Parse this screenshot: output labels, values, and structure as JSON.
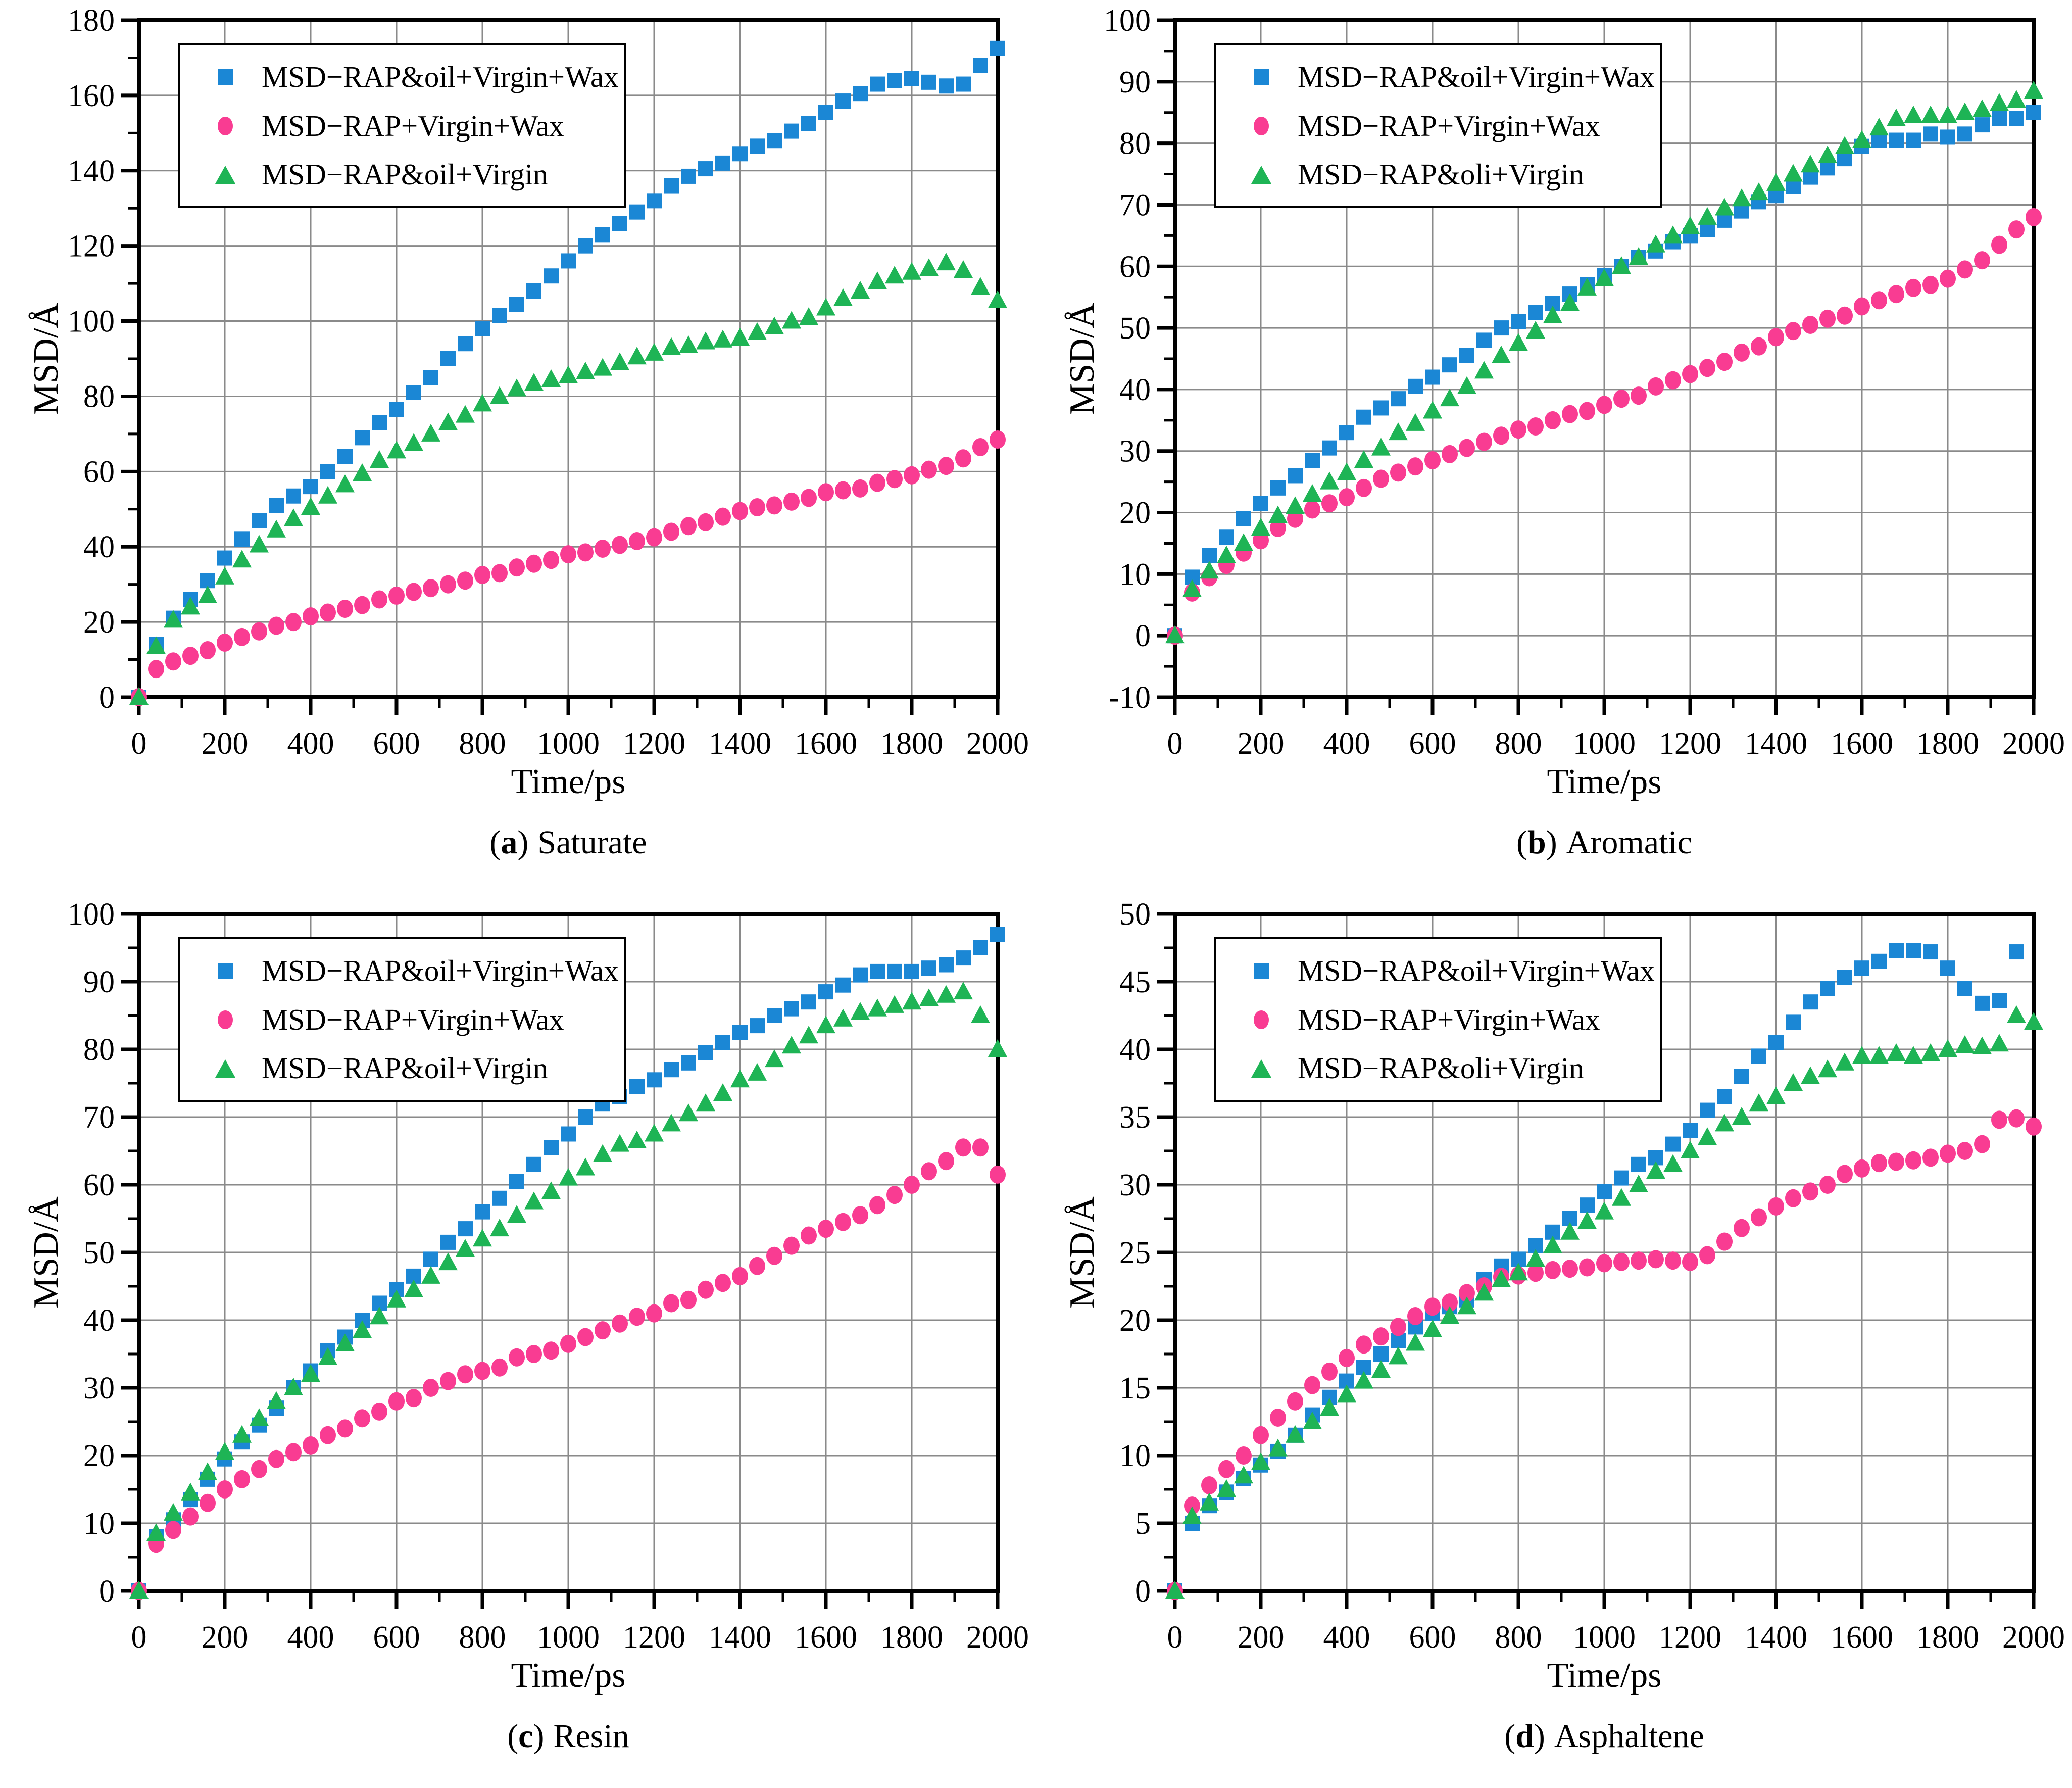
{
  "figure": {
    "xlabel": "Time/ps",
    "ylabel": "MSD/Å"
  },
  "colors": {
    "axis": "#000000",
    "grid": "#8a8a8a",
    "background": "#ffffff",
    "blue": "#1b87d5",
    "pink": "#f93c92",
    "green": "#1eb455"
  },
  "chart_data": [
    {
      "type": "scatter",
      "title": "Saturate",
      "caption": {
        "pre": "(",
        "letter": "a",
        "post": ")",
        "title": "Saturate"
      },
      "xlabel": "Time/ps",
      "ylabel": "MSD/Å",
      "xlim": [
        0,
        2000
      ],
      "ylim": [
        0,
        180
      ],
      "x_major": 200,
      "x_minor": 100,
      "y_major": 20,
      "y_minor": 10,
      "grid": true,
      "legend_position": "top-left",
      "x_start": 0,
      "x_step": 40,
      "series": [
        {
          "name": "MSD−RAP&oil+Virgin+Wax",
          "marker": "square",
          "color": "#1b87d5",
          "values": [
            0,
            14,
            21,
            26,
            31,
            37,
            42,
            47,
            51,
            53.5,
            56,
            60,
            64,
            69,
            73,
            76.5,
            81,
            85,
            90,
            94,
            98,
            101.5,
            104.5,
            108,
            112,
            116,
            120,
            123,
            126,
            129,
            132,
            136,
            138.5,
            140.5,
            142,
            144.5,
            146.5,
            148,
            150.5,
            152.5,
            155.5,
            158.5,
            160.5,
            163,
            164,
            164.5,
            163.5,
            162.5,
            163,
            168,
            172.5
          ]
        },
        {
          "name": "MSD−RAP+Virgin+Wax",
          "marker": "circle",
          "color": "#f93c92",
          "values": [
            0,
            7.5,
            9.5,
            11,
            12.5,
            14.5,
            16,
            17.5,
            19,
            20,
            21.5,
            22.5,
            23.5,
            24.5,
            26,
            27,
            28,
            29,
            30,
            31,
            32.5,
            33,
            34.5,
            35.5,
            36.5,
            38,
            38.5,
            39.5,
            40.5,
            41.5,
            42.5,
            44,
            45.5,
            46.5,
            48,
            49.5,
            50.5,
            51,
            52,
            53,
            54.5,
            55,
            55.5,
            57,
            58,
            59,
            60.5,
            61.5,
            63.5,
            66.5,
            68.5
          ]
        },
        {
          "name": "MSD−RAP&oil+Virgin",
          "marker": "triangle",
          "color": "#1eb455",
          "values": [
            0,
            13.5,
            20.5,
            24,
            27,
            32,
            36.5,
            40.5,
            44.5,
            47.5,
            50.5,
            53.5,
            56.5,
            59.5,
            63,
            65.5,
            67.5,
            70,
            73,
            75,
            78,
            80,
            82,
            83.5,
            84.5,
            85.5,
            86.5,
            87.5,
            89,
            90.5,
            91.5,
            93,
            93.5,
            94.5,
            95,
            95.5,
            97,
            98.5,
            100,
            101,
            103.5,
            106,
            108,
            110.5,
            112,
            113,
            114,
            115.5,
            113.5,
            109,
            105.5
          ]
        }
      ]
    },
    {
      "type": "scatter",
      "title": "Aromatic",
      "caption": {
        "pre": "(",
        "letter": "b",
        "post": ")",
        "title": "Aromatic"
      },
      "xlabel": "Time/ps",
      "ylabel": "MSD/Å",
      "xlim": [
        0,
        2000
      ],
      "ylim": [
        -10,
        100
      ],
      "x_major": 200,
      "x_minor": 100,
      "y_major": 10,
      "y_minor": 5,
      "grid": true,
      "legend_position": "top-left",
      "x_start": 0,
      "x_step": 40,
      "series": [
        {
          "name": "MSD−RAP&oil+Virgin+Wax",
          "marker": "square",
          "color": "#1b87d5",
          "values": [
            0,
            9.5,
            13,
            16,
            19,
            21.5,
            24,
            26,
            28.5,
            30.5,
            33,
            35.5,
            37,
            38.5,
            40.5,
            42,
            44,
            45.5,
            48,
            50,
            51,
            52.5,
            54,
            55.5,
            57,
            58.5,
            60,
            61.5,
            62.5,
            64,
            65,
            66,
            67.5,
            69,
            70.5,
            71.5,
            73,
            74.5,
            76,
            77.5,
            79.5,
            80.5,
            80.5,
            80.5,
            81.5,
            81,
            81.5,
            83,
            84,
            84,
            85
          ]
        },
        {
          "name": "MSD−RAP+Virgin+Wax",
          "marker": "circle",
          "color": "#f93c92",
          "values": [
            0,
            7,
            9.5,
            11.5,
            13.5,
            15.5,
            17.5,
            19,
            20.5,
            21.5,
            22.5,
            24,
            25.5,
            26.5,
            27.5,
            28.5,
            29.5,
            30.5,
            31.5,
            32.5,
            33.5,
            34,
            35,
            36,
            36.5,
            37.5,
            38.5,
            39,
            40.5,
            41.5,
            42.5,
            43.5,
            44.5,
            46,
            47,
            48.5,
            49.5,
            50.5,
            51.5,
            52,
            53.5,
            54.5,
            55.5,
            56.5,
            57,
            58,
            59.5,
            61,
            63.5,
            66,
            68
          ]
        },
        {
          "name": "MSD−RAP&oli+Virgin",
          "marker": "triangle",
          "color": "#1eb455",
          "values": [
            0,
            7.5,
            10.5,
            13,
            15,
            17.5,
            19.5,
            21,
            23,
            25,
            26.5,
            28.5,
            30.5,
            33,
            34.5,
            36.5,
            38.5,
            40.5,
            43,
            45.5,
            47.5,
            49.5,
            52,
            54,
            56.5,
            58,
            60,
            61.5,
            63.5,
            65,
            66.5,
            68,
            69.5,
            71,
            72,
            73.5,
            75,
            76.5,
            78,
            79.5,
            80.5,
            82.5,
            84,
            84.5,
            84.5,
            84.5,
            85,
            85.5,
            86.5,
            87,
            88.5
          ]
        }
      ]
    },
    {
      "type": "scatter",
      "title": "Resin",
      "caption": {
        "pre": "(",
        "letter": "c",
        "post": ")",
        "title": "Resin"
      },
      "xlabel": "Time/ps",
      "ylabel": "MSD/Å",
      "xlim": [
        0,
        2000
      ],
      "ylim": [
        0,
        100
      ],
      "x_major": 200,
      "x_minor": 100,
      "y_major": 10,
      "y_minor": 5,
      "grid": true,
      "legend_position": "top-left",
      "x_start": 0,
      "x_step": 40,
      "series": [
        {
          "name": "MSD−RAP&oil+Virgin+Wax",
          "marker": "square",
          "color": "#1b87d5",
          "values": [
            0,
            8,
            10.5,
            13.5,
            16.5,
            19.5,
            22,
            24.5,
            27,
            30,
            32.5,
            35.5,
            37.5,
            40,
            42.5,
            44.5,
            46.5,
            49,
            51.5,
            53.5,
            56,
            58,
            60.5,
            63,
            65.5,
            67.5,
            70,
            72,
            73,
            74.5,
            75.5,
            77,
            78,
            79.5,
            81,
            82.5,
            83.5,
            85,
            86,
            87,
            88.5,
            89.5,
            91,
            91.5,
            91.5,
            91.5,
            92,
            92.5,
            93.5,
            95,
            97
          ]
        },
        {
          "name": "MSD−RAP+Virgin+Wax",
          "marker": "circle",
          "color": "#f93c92",
          "values": [
            0,
            7,
            9,
            11,
            13,
            15,
            16.5,
            18,
            19.5,
            20.5,
            21.5,
            23,
            24,
            25.5,
            26.5,
            28,
            28.5,
            30,
            31,
            32,
            32.5,
            33,
            34.5,
            35,
            35.5,
            36.5,
            37.5,
            38.5,
            39.5,
            40.5,
            41,
            42.5,
            43,
            44.5,
            45.5,
            46.5,
            48,
            49.5,
            51,
            52.5,
            53.5,
            54.5,
            55.5,
            57,
            58.5,
            60,
            62,
            63.5,
            65.5,
            65.5,
            61.5
          ]
        },
        {
          "name": "MSD−RAP&oil+Virgin",
          "marker": "triangle",
          "color": "#1eb455",
          "values": [
            0,
            8.5,
            11.5,
            14.5,
            17.5,
            20.5,
            23,
            25.5,
            28,
            30,
            32,
            34.5,
            36.5,
            38.5,
            40.5,
            43,
            44.5,
            46.5,
            48.5,
            50.5,
            52,
            53.5,
            55.5,
            57.5,
            59,
            61,
            62.5,
            64.5,
            66,
            66.5,
            67.5,
            69,
            70.5,
            72,
            73.5,
            75.5,
            76.5,
            78.5,
            80.5,
            82,
            83.5,
            84.5,
            85.5,
            86,
            86.5,
            87,
            87.5,
            88,
            88.5,
            85,
            80
          ]
        }
      ]
    },
    {
      "type": "scatter",
      "title": "Asphaltene",
      "caption": {
        "pre": "(",
        "letter": "d",
        "post": ")",
        "title": "Asphaltene"
      },
      "xlabel": "Time/ps",
      "ylabel": "MSD/Å",
      "xlim": [
        0,
        2000
      ],
      "ylim": [
        0,
        50
      ],
      "x_major": 200,
      "x_minor": 100,
      "y_major": 5,
      "y_minor": 2.5,
      "grid": true,
      "legend_position": "top-left",
      "x_start": 0,
      "x_step": 40,
      "series": [
        {
          "name": "MSD−RAP&oil+Virgin+Wax",
          "marker": "square",
          "color": "#1b87d5",
          "values": [
            0,
            5,
            6.3,
            7.3,
            8.3,
            9.3,
            10.3,
            11.5,
            13,
            14.3,
            15.5,
            16.5,
            17.5,
            18.5,
            19.5,
            20.5,
            21,
            21.5,
            23,
            24,
            24.5,
            25.5,
            26.5,
            27.5,
            28.5,
            29.5,
            30.5,
            31.5,
            32,
            33,
            34,
            35.5,
            36.5,
            38,
            39.5,
            40.5,
            42,
            43.5,
            44.5,
            45.3,
            46,
            46.5,
            47.3,
            47.3,
            47.2,
            46,
            44.5,
            43.4,
            43.6,
            47.2,
            null
          ]
        },
        {
          "name": "MSD−RAP+Virgin+Wax",
          "marker": "circle",
          "color": "#f93c92",
          "values": [
            0,
            6.3,
            7.8,
            9,
            10,
            11.5,
            12.8,
            14,
            15.2,
            16.2,
            17.2,
            18.2,
            18.8,
            19.5,
            20.3,
            21,
            21.3,
            22,
            22.5,
            23.2,
            23.3,
            23.5,
            23.7,
            23.8,
            23.9,
            24.2,
            24.3,
            24.4,
            24.5,
            24.4,
            24.3,
            24.8,
            25.8,
            26.8,
            27.6,
            28.4,
            29,
            29.5,
            30,
            30.8,
            31.2,
            31.6,
            31.7,
            31.8,
            32,
            32.3,
            32.5,
            33,
            34.8,
            34.9,
            34.3
          ]
        },
        {
          "name": "MSD−RAP&oli+Virgin",
          "marker": "triangle",
          "color": "#1eb455",
          "values": [
            0,
            5.5,
            6.5,
            7.5,
            8.5,
            9.5,
            10.5,
            11.5,
            12.5,
            13.5,
            14.5,
            15.5,
            16.3,
            17.3,
            18.3,
            19.3,
            20.3,
            21,
            22,
            23,
            23.5,
            24.5,
            25.5,
            26.5,
            27.3,
            28,
            29,
            30,
            31,
            31.5,
            32.5,
            33.5,
            34.5,
            35,
            36,
            36.5,
            37.5,
            38,
            38.5,
            39,
            39.5,
            39.5,
            39.7,
            39.5,
            39.7,
            40,
            40.3,
            40.2,
            40.4,
            42.5,
            42
          ]
        }
      ]
    }
  ]
}
